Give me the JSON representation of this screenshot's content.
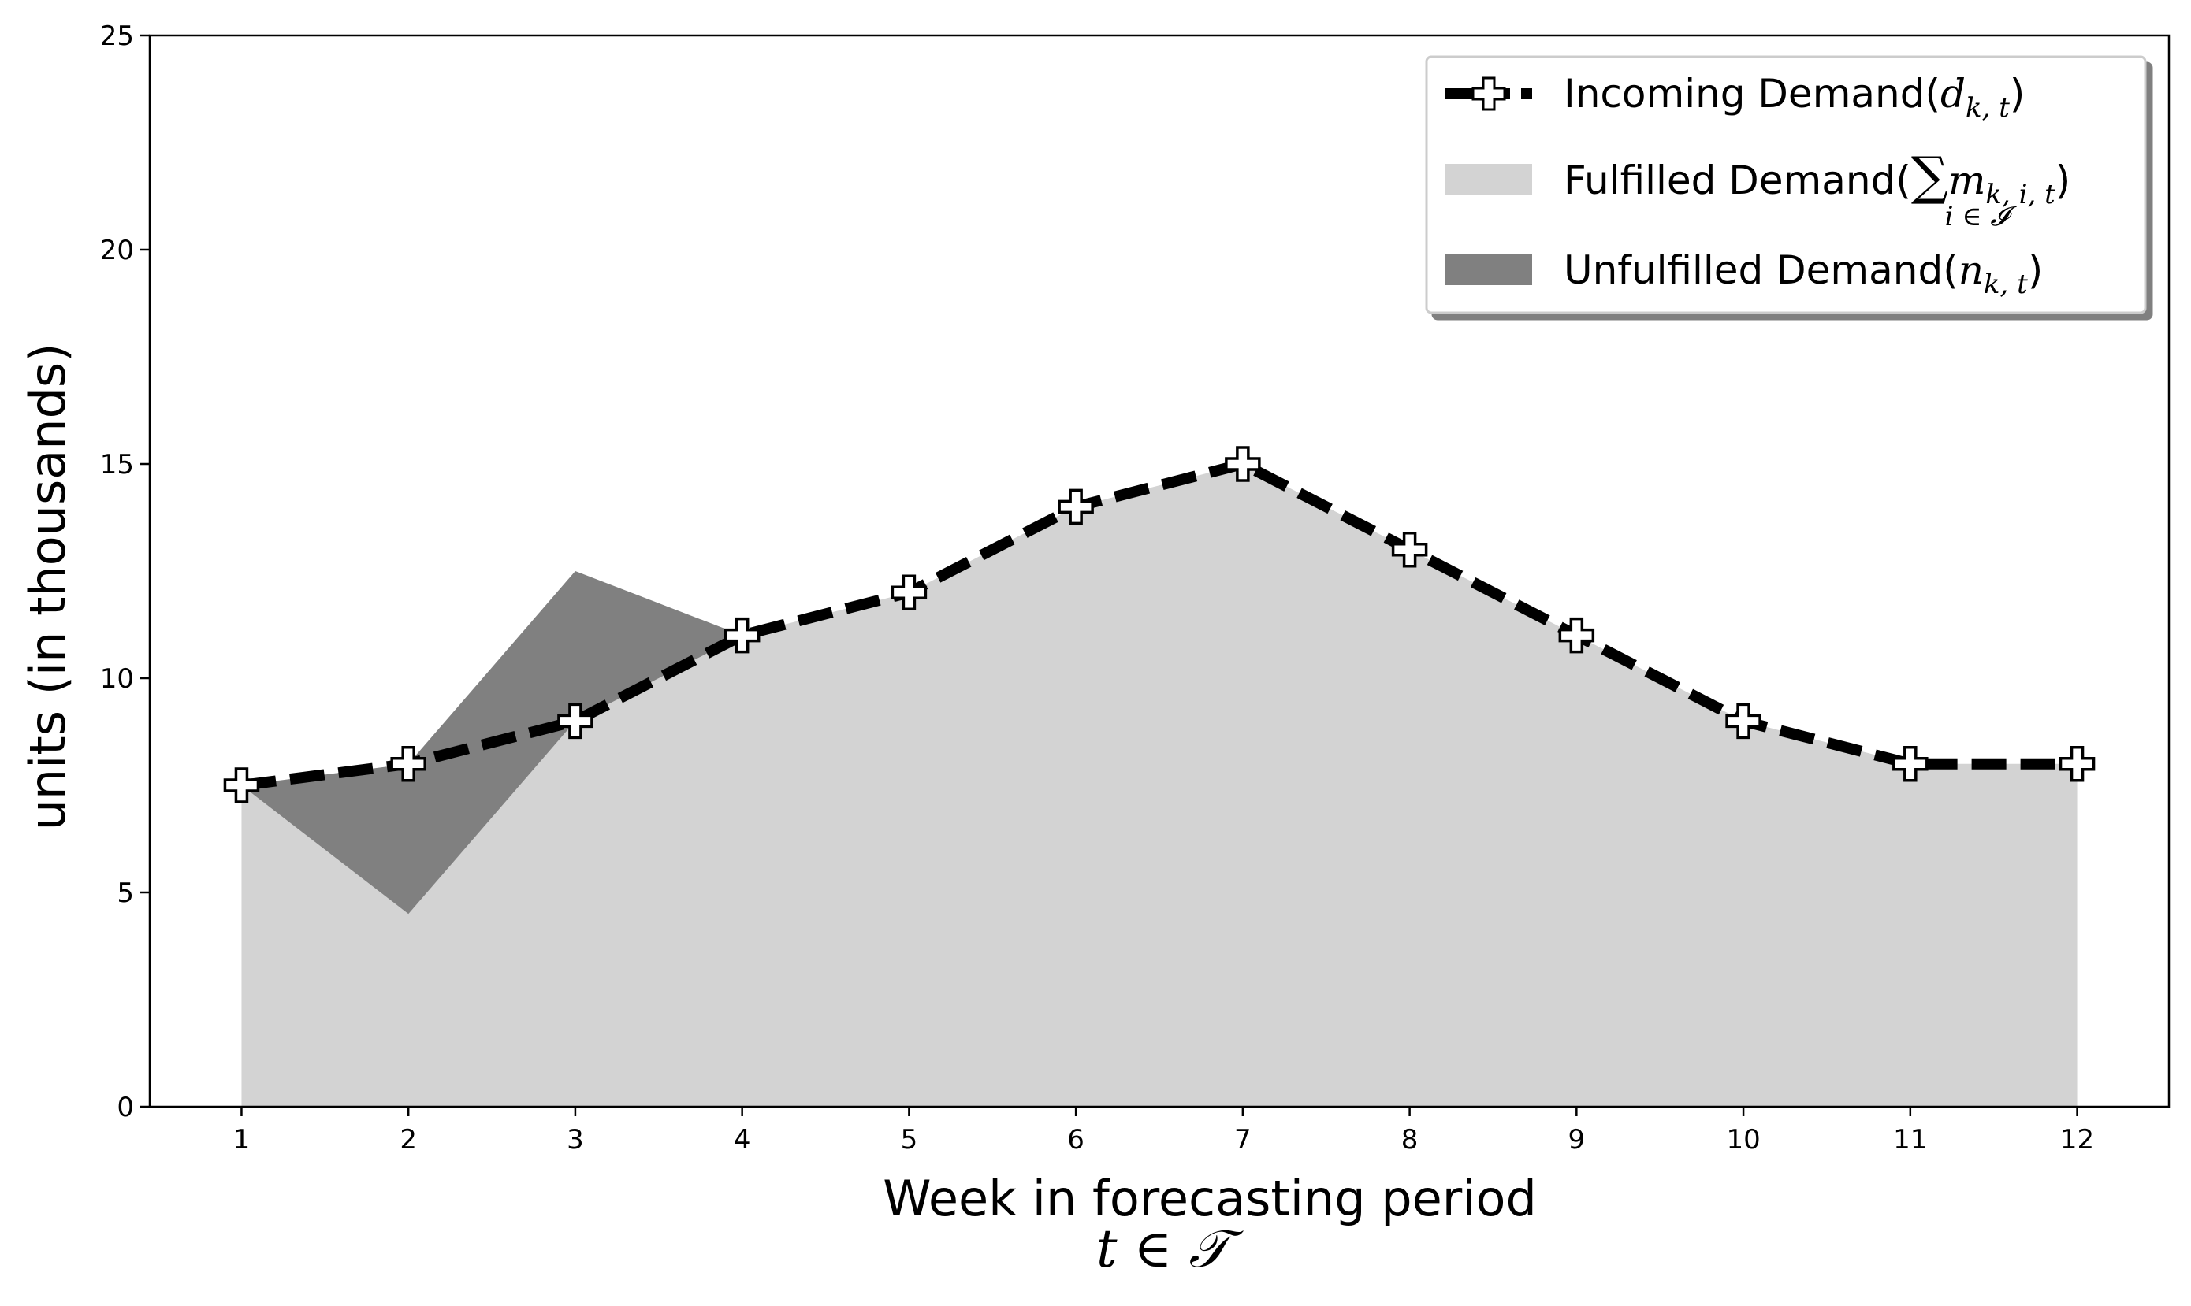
{
  "chart_data": {
    "type": "area",
    "x": [
      1,
      2,
      3,
      4,
      5,
      6,
      7,
      8,
      9,
      10,
      11,
      12
    ],
    "series": [
      {
        "name": "Incoming Demand",
        "math": "d",
        "sub": "k, t",
        "style": "dashed-line-with-plus-markers",
        "values": [
          7.5,
          8,
          9,
          11,
          12,
          14,
          15,
          13,
          11,
          9,
          8,
          8
        ]
      },
      {
        "name": "Fulfilled Demand",
        "math_prefix": "∑",
        "math_under": "i ∈ 𝓘",
        "math": "m",
        "sub": "k, i, t",
        "style": "area",
        "values": [
          7.5,
          4.5,
          12.5,
          11,
          12,
          14,
          15,
          13,
          11,
          9,
          8,
          8
        ]
      },
      {
        "name": "Unfulfilled Demand",
        "math": "n",
        "sub": "k, t",
        "style": "area-between",
        "values": [
          0,
          3.5,
          0,
          0,
          0,
          0,
          0,
          0,
          0,
          0,
          0,
          0
        ]
      }
    ],
    "xlabel": "Week in forecasting period",
    "xlabel_math": "t ∈ 𝒯",
    "ylabel": "units (in thousands)",
    "xticks": [
      "1",
      "2",
      "3",
      "4",
      "5",
      "6",
      "7",
      "8",
      "9",
      "10",
      "11",
      "12"
    ],
    "yticks": [
      "0",
      "5",
      "10",
      "15",
      "20",
      "25"
    ],
    "xlim": [
      0.45,
      12.55
    ],
    "ylim": [
      0,
      25
    ],
    "grid": false,
    "legend_position": "top-right",
    "colors": {
      "fulfilled": "#d3d3d3",
      "unfulfilled": "#808080",
      "line": "#000000",
      "marker_fill": "#ffffff"
    }
  }
}
